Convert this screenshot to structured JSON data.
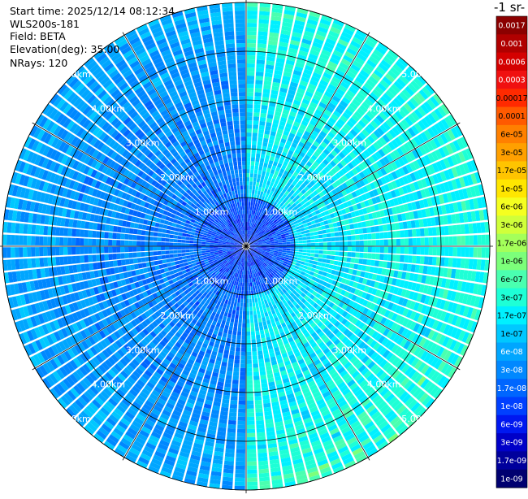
{
  "info": {
    "start_time": "Start time: 2025/12/14 08:12:34",
    "instrument": "WLS200s-181",
    "field": "Field: BETA",
    "elevation": "Elevation(deg): 35.00",
    "nrays": "NRays: 120"
  },
  "colorbar": {
    "title": "-1 sr-",
    "entries": [
      {
        "label": "0.0017",
        "color": "#8b0000"
      },
      {
        "label": "0.001",
        "color": "#b00000"
      },
      {
        "label": "0.0006",
        "color": "#d40000"
      },
      {
        "label": "0.0003",
        "color": "#f01010"
      },
      {
        "label": "0.00017",
        "color": "#ff2a00"
      },
      {
        "label": "0.0001",
        "color": "#ff5a00"
      },
      {
        "label": "6e-05",
        "color": "#ff8000"
      },
      {
        "label": "3e-05",
        "color": "#ffa000"
      },
      {
        "label": "1.7e-05",
        "color": "#ffc400"
      },
      {
        "label": "1e-05",
        "color": "#ffe600"
      },
      {
        "label": "6e-06",
        "color": "#f5ff20"
      },
      {
        "label": "3e-06",
        "color": "#d0ff3a"
      },
      {
        "label": "1.7e-06",
        "color": "#a4ff5a"
      },
      {
        "label": "1e-06",
        "color": "#7cff7a"
      },
      {
        "label": "6e-07",
        "color": "#4affb0"
      },
      {
        "label": "3e-07",
        "color": "#1effd6"
      },
      {
        "label": "1.7e-07",
        "color": "#00f0ff"
      },
      {
        "label": "1e-07",
        "color": "#00c8ff"
      },
      {
        "label": "6e-08",
        "color": "#00a6ff"
      },
      {
        "label": "3e-08",
        "color": "#0088ff"
      },
      {
        "label": "1.7e-08",
        "color": "#0066ff"
      },
      {
        "label": "1e-08",
        "color": "#0040ff"
      },
      {
        "label": "6e-09",
        "color": "#0018f0"
      },
      {
        "label": "3e-09",
        "color": "#0000c8"
      },
      {
        "label": "1.7e-09",
        "color": "#00009c"
      },
      {
        "label": "1e-09",
        "color": "#000070"
      }
    ]
  },
  "chart_data": {
    "type": "heatmap",
    "projection": "polar (PPI scan)",
    "rays": 120,
    "range_rings_km": [
      1,
      2,
      3,
      4,
      5
    ],
    "range_unit": "km",
    "ring_labels": [
      "1.00km",
      "2.00km",
      "3.00km",
      "4.00km",
      "5.00km"
    ],
    "colorscale": "log",
    "value_range": [
      1e-09,
      0.0017
    ],
    "west_half_level": "1e-08 to 3e-08 (blue)",
    "east_half_level": "1e-07 to 3e-07 (cyan)",
    "near_range_level": "3e-09 to 1e-08 (dark blue)"
  }
}
